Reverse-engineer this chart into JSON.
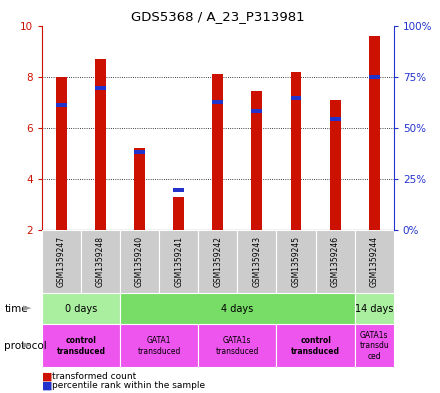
{
  "title": "GDS5368 / A_23_P313981",
  "samples": [
    "GSM1359247",
    "GSM1359248",
    "GSM1359240",
    "GSM1359241",
    "GSM1359242",
    "GSM1359243",
    "GSM1359245",
    "GSM1359246",
    "GSM1359244"
  ],
  "transformed_counts": [
    8.0,
    8.7,
    5.2,
    3.3,
    8.1,
    7.45,
    8.2,
    7.1,
    9.6
  ],
  "percentile_ranks_left": [
    6.9,
    7.55,
    5.05,
    3.55,
    7.0,
    6.65,
    7.15,
    6.35,
    8.0
  ],
  "bar_bottom": 2.0,
  "ylim_left": [
    2,
    10
  ],
  "ylim_right": [
    0,
    100
  ],
  "yticks_left": [
    2,
    4,
    6,
    8,
    10
  ],
  "yticks_right": [
    0,
    25,
    50,
    75,
    100
  ],
  "bar_color_red": "#cc1100",
  "bar_color_blue": "#2233cc",
  "time_groups": [
    {
      "label": "0 days",
      "start": 0,
      "end": 1,
      "color": "#aaeea0"
    },
    {
      "label": "4 days",
      "start": 1,
      "end": 7,
      "color": "#77dd66"
    },
    {
      "label": "14 days",
      "start": 7,
      "end": 8,
      "color": "#aaeea0"
    }
  ],
  "protocol_groups": [
    {
      "label": "control\ntransduced",
      "start": 0,
      "end": 2,
      "color": "#ee55ee",
      "bold": true
    },
    {
      "label": "GATA1\ntransduced",
      "start": 2,
      "end": 4,
      "color": "#ee55ee",
      "bold": false
    },
    {
      "label": "GATA1s\ntransduced",
      "start": 4,
      "end": 6,
      "color": "#ee55ee",
      "bold": false
    },
    {
      "label": "control\ntransduced",
      "start": 6,
      "end": 8,
      "color": "#ee55ee",
      "bold": true
    },
    {
      "label": "GATA1s\ntransdu\nced",
      "start": 8,
      "end": 9,
      "color": "#ee55ee",
      "bold": false
    }
  ],
  "right_axis_color": "#2233cc",
  "left_axis_color": "#cc1100",
  "bg_color": "#ffffff",
  "plot_bg": "#ffffff",
  "sample_bg": "#cccccc",
  "bar_width": 0.28
}
